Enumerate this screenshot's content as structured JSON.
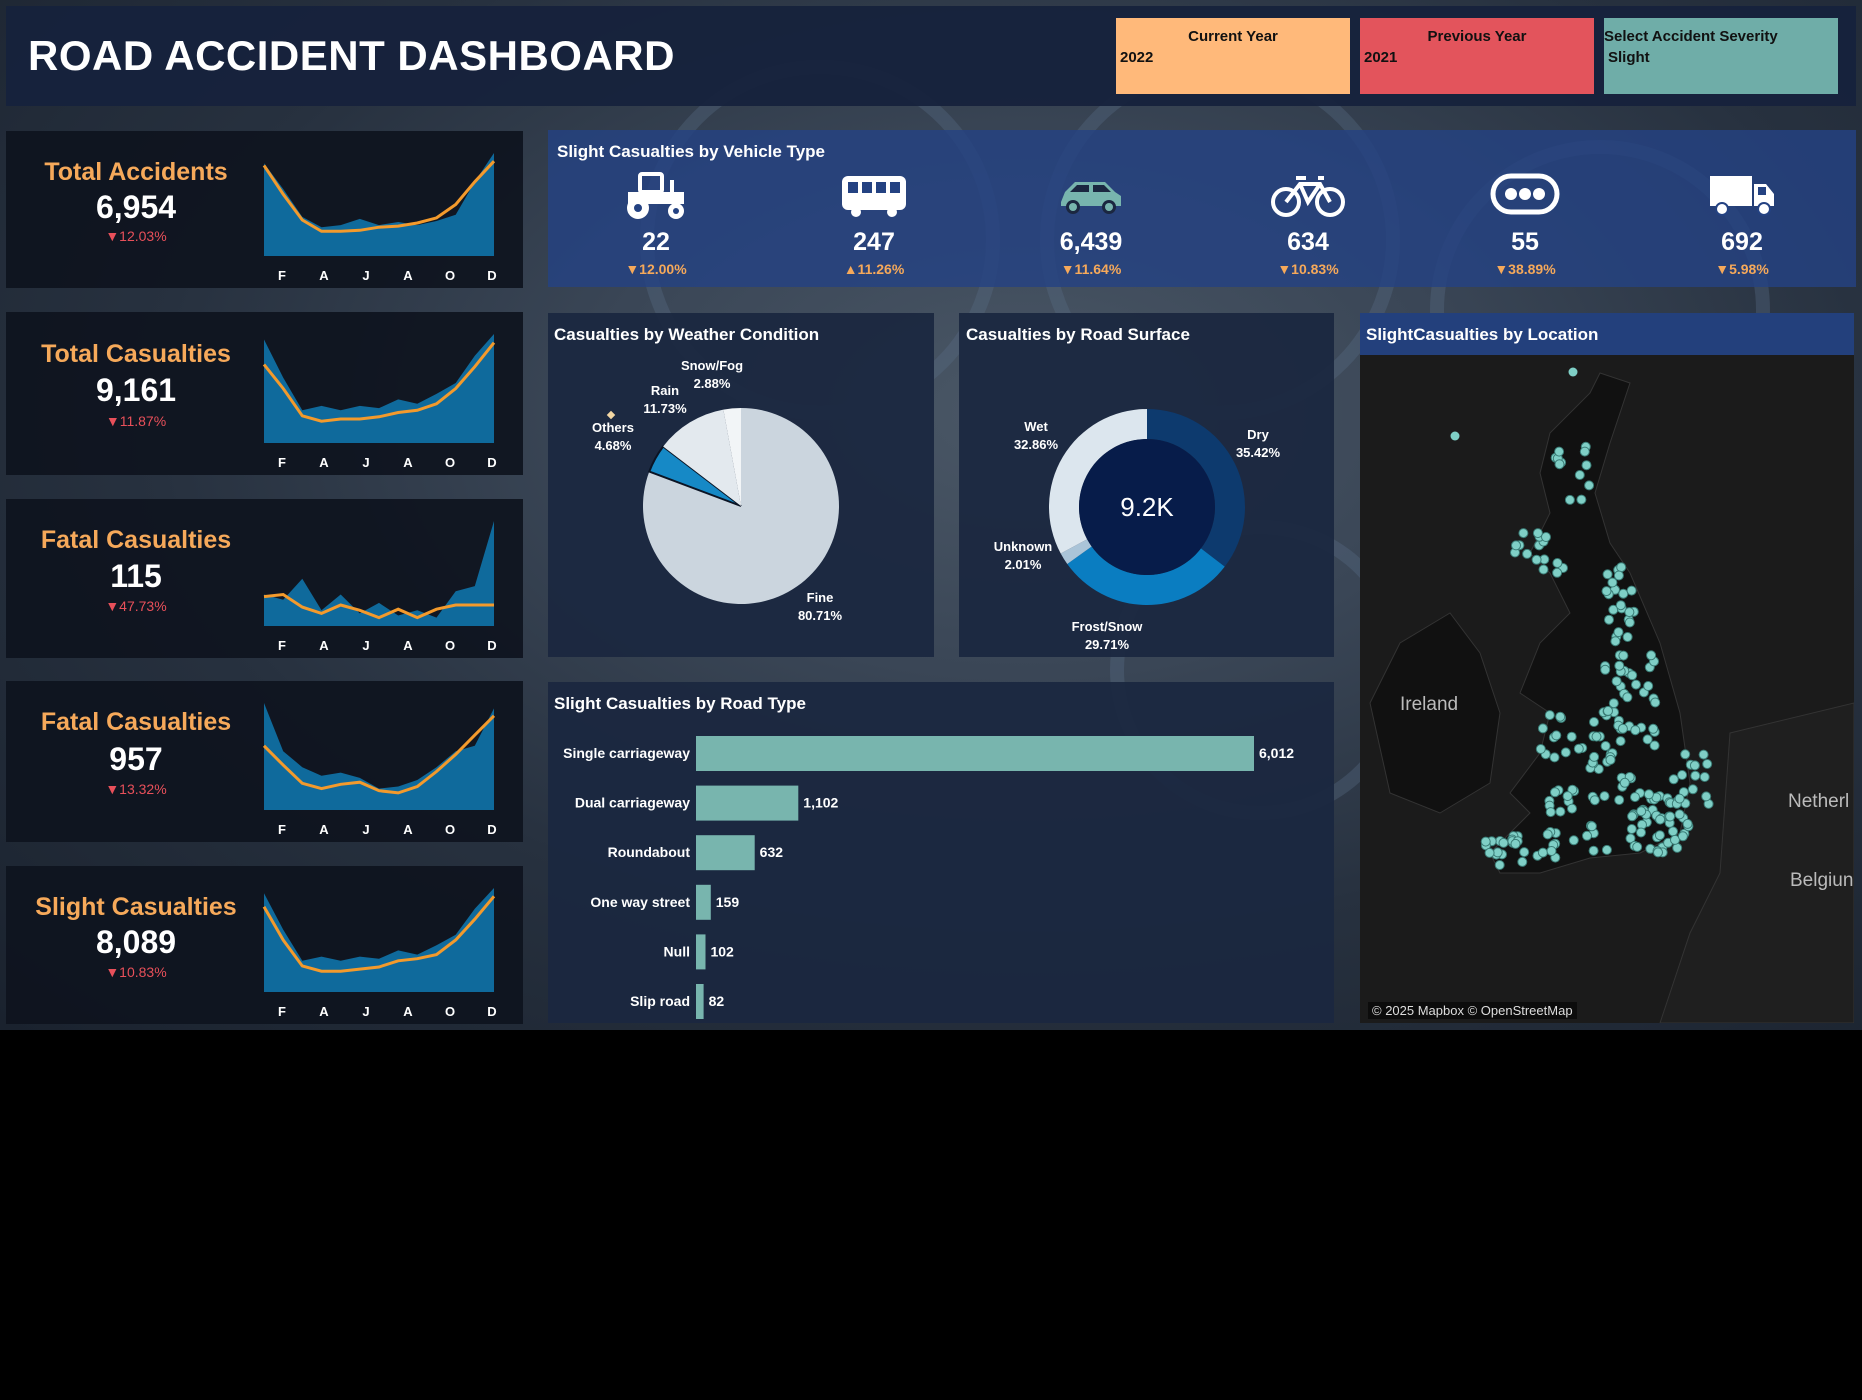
{
  "header": {
    "title": "ROAD ACCIDENT DASHBOARD",
    "filters": [
      {
        "label": "Current Year",
        "value": "2022",
        "color": "#ffb97a"
      },
      {
        "label": "Previous Year",
        "value": "2021",
        "color": "#e3545c"
      },
      {
        "label": "Select Accident Severity",
        "value": "Slight",
        "color": "#6fada8"
      }
    ]
  },
  "kpis": [
    {
      "title": "Total Accidents",
      "value": "6,954",
      "change": "▼12.03%",
      "months": [
        "F",
        "A",
        "J",
        "A",
        "O",
        "D"
      ],
      "area": [
        0.9,
        0.65,
        0.38,
        0.28,
        0.3,
        0.36,
        0.3,
        0.33,
        0.3,
        0.34,
        0.4,
        0.72,
        1.0
      ],
      "line": [
        0.88,
        0.6,
        0.35,
        0.24,
        0.24,
        0.25,
        0.28,
        0.29,
        0.32,
        0.37,
        0.5,
        0.72,
        0.92
      ]
    },
    {
      "title": "Total Casualties",
      "value": "9,161",
      "change": "▼11.87%",
      "months": [
        "F",
        "A",
        "J",
        "A",
        "O",
        "D"
      ],
      "area": [
        0.95,
        0.6,
        0.3,
        0.34,
        0.3,
        0.34,
        0.32,
        0.4,
        0.36,
        0.45,
        0.55,
        0.8,
        1.0
      ],
      "line": [
        0.72,
        0.5,
        0.25,
        0.2,
        0.22,
        0.22,
        0.24,
        0.28,
        0.3,
        0.36,
        0.5,
        0.7,
        0.92
      ]
    },
    {
      "title": "Fatal Casualties",
      "value": "115",
      "change": "▼47.73%",
      "months": [
        "F",
        "A",
        "J",
        "A",
        "O",
        "D"
      ],
      "area": [
        0.3,
        0.25,
        0.45,
        0.15,
        0.3,
        0.12,
        0.22,
        0.1,
        0.15,
        0.08,
        0.33,
        0.38,
        1.0
      ],
      "line": [
        0.28,
        0.3,
        0.18,
        0.12,
        0.2,
        0.15,
        0.08,
        0.16,
        0.08,
        0.16,
        0.2,
        0.2,
        0.2
      ]
    },
    {
      "title": "Fatal Casualties",
      "value": "957",
      "change": "▼13.32%",
      "months": [
        "F",
        "A",
        "J",
        "A",
        "O",
        "D"
      ],
      "area": [
        1.0,
        0.55,
        0.4,
        0.32,
        0.35,
        0.3,
        0.2,
        0.22,
        0.28,
        0.4,
        0.55,
        0.6,
        0.95
      ],
      "line": [
        0.6,
        0.42,
        0.25,
        0.2,
        0.24,
        0.26,
        0.18,
        0.16,
        0.22,
        0.36,
        0.52,
        0.7,
        0.88
      ]
    },
    {
      "title": "Slight Casualties",
      "value": "8,089",
      "change": "▼10.83%",
      "months": [
        "F",
        "A",
        "J",
        "A",
        "O",
        "D"
      ],
      "area": [
        0.95,
        0.6,
        0.3,
        0.34,
        0.3,
        0.34,
        0.32,
        0.4,
        0.36,
        0.45,
        0.55,
        0.8,
        1.0
      ],
      "line": [
        0.82,
        0.5,
        0.25,
        0.2,
        0.2,
        0.22,
        0.24,
        0.3,
        0.32,
        0.36,
        0.5,
        0.7,
        0.92
      ]
    }
  ],
  "vehicle": {
    "title": "Slight Casualties by Vehicle Type",
    "items": [
      {
        "icon": "tractor-icon",
        "value": "22",
        "change": "▼12.00%"
      },
      {
        "icon": "bus-icon",
        "value": "247",
        "change": "▲11.26%"
      },
      {
        "icon": "car-icon",
        "value": "6,439",
        "change": "▼11.64%"
      },
      {
        "icon": "bicycle-icon",
        "value": "634",
        "change": "▼10.83%"
      },
      {
        "icon": "other-vehicle-icon",
        "value": "55",
        "change": "▼38.89%"
      },
      {
        "icon": "truck-icon",
        "value": "692",
        "change": "▼5.98%"
      }
    ]
  },
  "weather": {
    "title": "Casualties by Weather Condition",
    "chart_data": {
      "type": "pie",
      "slices": [
        {
          "name": "Fine",
          "pct": "80.71%",
          "value": 80.71,
          "color": "#cbd5de"
        },
        {
          "name": "Others",
          "pct": "4.68%",
          "value": 4.68,
          "color": "#1689c6"
        },
        {
          "name": "Rain",
          "pct": "11.73%",
          "value": 11.73,
          "color": "#e3e9ee"
        },
        {
          "name": "Snow/Fog",
          "pct": "2.88%",
          "value": 2.88,
          "color": "#f2f5f7"
        }
      ]
    }
  },
  "surface": {
    "title": "Casualties by Road Surface",
    "center": "9.2K",
    "chart_data": {
      "type": "pie",
      "slices": [
        {
          "name": "Dry",
          "pct": "35.42%",
          "value": 35.42,
          "color": "#0d3a6e"
        },
        {
          "name": "Frost/Snow",
          "pct": "29.71%",
          "value": 29.71,
          "color": "#0a7dc1"
        },
        {
          "name": "Unknown",
          "pct": "2.01%",
          "value": 2.01,
          "color": "#aac4d8"
        },
        {
          "name": "Wet",
          "pct": "32.86%",
          "value": 32.86,
          "color": "#dce6ee"
        }
      ]
    }
  },
  "location": {
    "title": "SlightCasualties by Location",
    "labels": [
      "Ireland",
      "Netherl",
      "Belgiun"
    ],
    "attribution": "© 2025 Mapbox © OpenStreetMap"
  },
  "roadtype": {
    "title": "Slight Casualties by Road Type",
    "chart_data": {
      "type": "bar",
      "categories": [
        "Single carriageway",
        "Dual carriageway",
        "Roundabout",
        "One way street",
        "Null",
        "Slip road"
      ],
      "values": [
        6012,
        1102,
        632,
        159,
        102,
        82
      ],
      "labels": [
        "6,012",
        "1,102",
        "632",
        "159",
        "102",
        "82"
      ],
      "color": "#78b5ae"
    }
  }
}
